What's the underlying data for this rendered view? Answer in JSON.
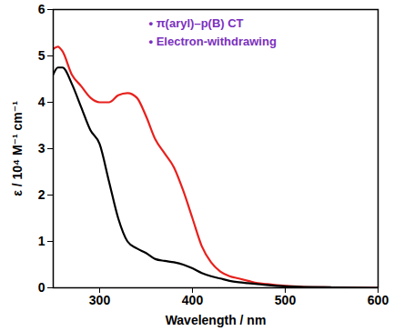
{
  "chart_data": {
    "type": "line",
    "x_label": "Wavelength / nm",
    "y_label": "ε / 10⁴ M⁻¹ cm⁻¹",
    "x": [
      250,
      255,
      260,
      270,
      280,
      290,
      300,
      310,
      320,
      330,
      340,
      350,
      360,
      370,
      380,
      390,
      400,
      410,
      420,
      430,
      440,
      450,
      460,
      470,
      480,
      500,
      520,
      550,
      600
    ],
    "series": [
      {
        "color": "#e8201c",
        "values": [
          5.15,
          5.2,
          5.1,
          4.6,
          4.35,
          4.1,
          4.0,
          4.0,
          4.15,
          4.2,
          4.1,
          3.7,
          3.2,
          2.9,
          2.6,
          2.1,
          1.5,
          0.9,
          0.55,
          0.35,
          0.25,
          0.2,
          0.15,
          0.1,
          0.08,
          0.04,
          0.02,
          0.01,
          0.0
        ]
      },
      {
        "color": "#000000",
        "values": [
          4.6,
          4.75,
          4.75,
          4.4,
          3.9,
          3.4,
          3.1,
          2.3,
          1.5,
          1.0,
          0.85,
          0.75,
          0.62,
          0.58,
          0.55,
          0.5,
          0.42,
          0.32,
          0.25,
          0.2,
          0.15,
          0.12,
          0.1,
          0.08,
          0.06,
          0.03,
          0.02,
          0.01,
          0.0
        ]
      }
    ],
    "annotations": [
      {
        "text": "• π(aryl)–p(B) CT",
        "color": "#7b2fbe"
      },
      {
        "text": "• Electron-withdrawing",
        "color": "#7b2fbe"
      }
    ],
    "xlim": [
      250,
      600
    ],
    "xticks": [
      300,
      400,
      500,
      600
    ],
    "ylim": [
      0,
      6
    ],
    "yticks": [
      0,
      1,
      2,
      3,
      4,
      5,
      6
    ],
    "grid": false
  }
}
